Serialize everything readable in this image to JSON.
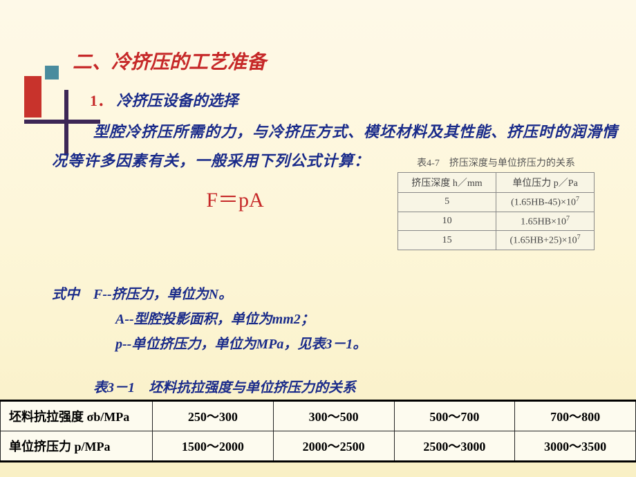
{
  "page": {
    "title": "二、冷挤压的工艺准备",
    "section_number": "1．",
    "section_label": "冷挤压设备的选择",
    "paragraph": "型腔冷挤压所需的力，与冷挤压方式、模坯材料及其性能、挤压时的润滑情况等许多因素有关，一般采用下列公式计算：",
    "formula": "F＝pA"
  },
  "table47": {
    "title": "表4-7　挤压深度与单位挤压力的关系",
    "headers": [
      "挤压深度 h／mm",
      "单位压力 p／Pa"
    ],
    "rows": [
      [
        "5",
        "(1.65HB-45)×10"
      ],
      [
        "10",
        "1.65HB×10"
      ],
      [
        "15",
        "(1.65HB+25)×10"
      ]
    ]
  },
  "defs": {
    "lead": "式中　F--挤压力，单位为N。",
    "a": "A--型腔投影面积，单位为mm2；",
    "p": "p--单位挤压力，单位为MPa，见表3－1。"
  },
  "table31": {
    "title": "表3－1　坯料抗拉强度与单位挤压力的关系",
    "row1_label": "坯料抗拉强度 σb/MPa",
    "row2_label": "单位挤压力 p/MPa",
    "row1": [
      "250～300",
      "300～500",
      "500～700",
      "700～800"
    ],
    "row2": [
      "1500～2000",
      "2000～2500",
      "2500～3000",
      "3000～3500"
    ]
  },
  "colors": {
    "accent_red": "#c62828",
    "text_blue": "#1a2b8a",
    "block_red": "#c8332c",
    "block_teal": "#4a8c9e",
    "block_dark": "#3d2756"
  }
}
